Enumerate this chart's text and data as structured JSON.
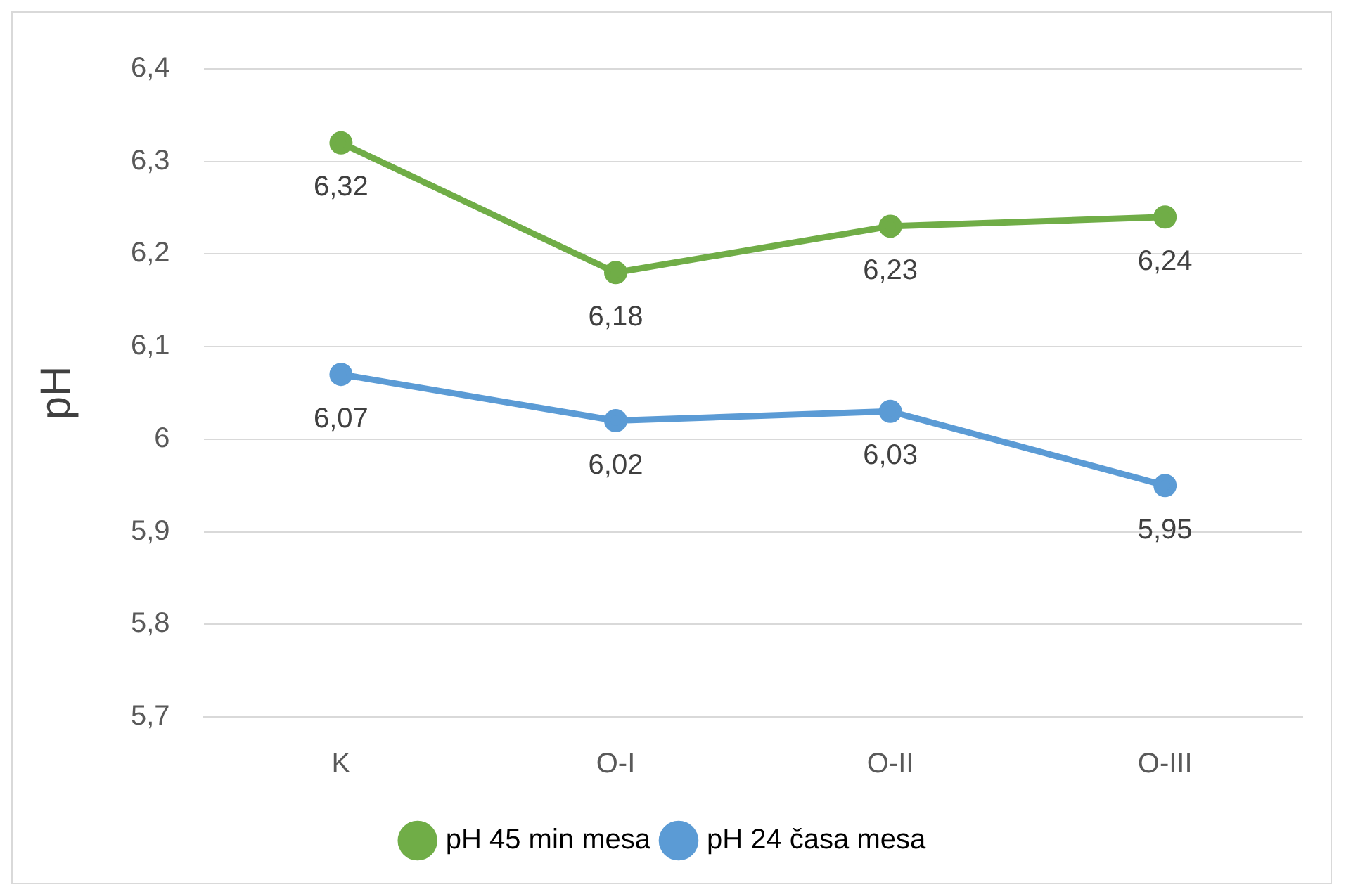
{
  "chart_data": {
    "type": "line",
    "ylabel": "pH",
    "categories": [
      "K",
      "O-I",
      "O-II",
      "O-III"
    ],
    "series": [
      {
        "name": "pH 45 min mesa",
        "color": "#70ad47",
        "values": [
          6.32,
          6.18,
          6.23,
          6.24
        ],
        "value_labels": [
          "6,32",
          "6,18",
          "6,23",
          "6,24"
        ]
      },
      {
        "name": "pH 24 časa mesa",
        "color": "#5b9bd5",
        "values": [
          6.07,
          6.02,
          6.03,
          5.95
        ],
        "value_labels": [
          "6,07",
          "6,02",
          "6,03",
          "5,95"
        ]
      }
    ],
    "ylim": [
      5.7,
      6.4
    ],
    "yticks": [
      {
        "value": 5.7,
        "label": "5,7"
      },
      {
        "value": 5.8,
        "label": "5,8"
      },
      {
        "value": 5.9,
        "label": "5,9"
      },
      {
        "value": 6,
        "label": "6"
      },
      {
        "value": 6.1,
        "label": "6,1"
      },
      {
        "value": 6.2,
        "label": "6,2"
      },
      {
        "value": 6.3,
        "label": "6,3"
      },
      {
        "value": 6.4,
        "label": "6,4"
      }
    ],
    "grid": "y",
    "legend": "bottom",
    "marker": "circle",
    "line_style": "solid"
  }
}
